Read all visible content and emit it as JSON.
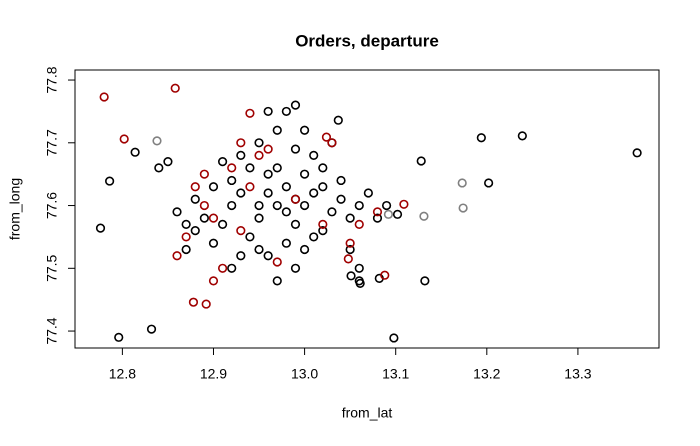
{
  "chart_data": {
    "type": "scatter",
    "title": "Orders, departure",
    "x_label": "from_lat",
    "y_label": "from_long",
    "xlim": [
      12.748,
      13.389
    ],
    "ylim": [
      77.373,
      77.816
    ],
    "xticks": [
      12.8,
      12.9,
      {
        "value": 13,
        "label": "13.0"
      },
      13.1,
      13.2,
      13.3
    ],
    "yticks": [
      77.4,
      77.5,
      77.6,
      77.7,
      77.8
    ],
    "series": [
      {
        "color": "#000000",
        "x": [
          12.776,
          12.786,
          12.796,
          12.832,
          12.814,
          13.098,
          13.132,
          13.128,
          13.194,
          13.239,
          13.202,
          13.365,
          13.082,
          13.102,
          13.051,
          13.061,
          13.037,
          12.92,
          12.93,
          12.95,
          12.96,
          12.97,
          12.98,
          12.99,
          13.0,
          13.01,
          12.94,
          12.96,
          12.98,
          13.0,
          13.02,
          13.03,
          13.04,
          13.05,
          13.06,
          12.91,
          12.9,
          12.89,
          12.88,
          12.87,
          12.86,
          12.95,
          12.97,
          12.98,
          12.96,
          12.99,
          13.01,
          13.02,
          12.93,
          12.94,
          13.03,
          13.04,
          13.07,
          13.08,
          13.05,
          13.06,
          12.92,
          12.93,
          12.95,
          12.97,
          12.99,
          13.01,
          12.9,
          12.88,
          12.97,
          12.96,
          12.99,
          13.0,
          12.95,
          12.98,
          12.92,
          13.02,
          13.09,
          13.06,
          12.85,
          12.87,
          12.84,
          13.0,
          12.99,
          12.91
        ],
        "values": [
          77.564,
          77.639,
          77.39,
          77.403,
          77.685,
          77.389,
          77.48,
          77.671,
          77.708,
          77.711,
          77.636,
          77.684,
          77.484,
          77.586,
          77.488,
          77.476,
          77.736,
          77.6,
          77.62,
          77.58,
          77.65,
          77.6,
          77.63,
          77.57,
          77.6,
          77.62,
          77.55,
          77.52,
          77.54,
          77.53,
          77.56,
          77.59,
          77.61,
          77.58,
          77.6,
          77.57,
          77.63,
          77.58,
          77.61,
          77.57,
          77.59,
          77.7,
          77.72,
          77.75,
          77.75,
          77.69,
          77.68,
          77.66,
          77.68,
          77.66,
          77.7,
          77.64,
          77.62,
          77.58,
          77.53,
          77.5,
          77.5,
          77.52,
          77.53,
          77.48,
          77.5,
          77.55,
          77.54,
          77.56,
          77.66,
          77.62,
          77.61,
          77.65,
          77.6,
          77.59,
          77.64,
          77.63,
          77.6,
          77.48,
          77.67,
          77.53,
          77.66,
          77.72,
          77.76,
          77.67
        ]
      },
      {
        "color": "#a00000",
        "x": [
          12.78,
          12.858,
          12.802,
          12.892,
          12.878,
          12.86,
          13.088,
          13.109,
          12.94,
          13.024,
          13.048,
          12.93,
          12.95,
          12.89,
          12.9,
          12.92,
          12.99,
          13.02,
          13.05,
          13.06,
          12.91,
          12.9,
          12.93,
          12.87,
          12.94,
          13.03,
          12.96,
          12.97,
          12.89,
          12.88,
          13.08
        ],
        "values": [
          77.773,
          77.787,
          77.706,
          77.443,
          77.446,
          77.52,
          77.489,
          77.602,
          77.747,
          77.709,
          77.515,
          77.7,
          77.68,
          77.6,
          77.58,
          77.66,
          77.61,
          77.57,
          77.54,
          77.57,
          77.5,
          77.48,
          77.56,
          77.55,
          77.63,
          77.7,
          77.69,
          77.51,
          77.65,
          77.63,
          77.59
        ]
      },
      {
        "color": "#808080",
        "x": [
          12.838,
          13.173,
          13.174,
          13.131,
          13.092
        ],
        "values": [
          77.703,
          77.636,
          77.596,
          77.583,
          77.586
        ]
      }
    ]
  }
}
